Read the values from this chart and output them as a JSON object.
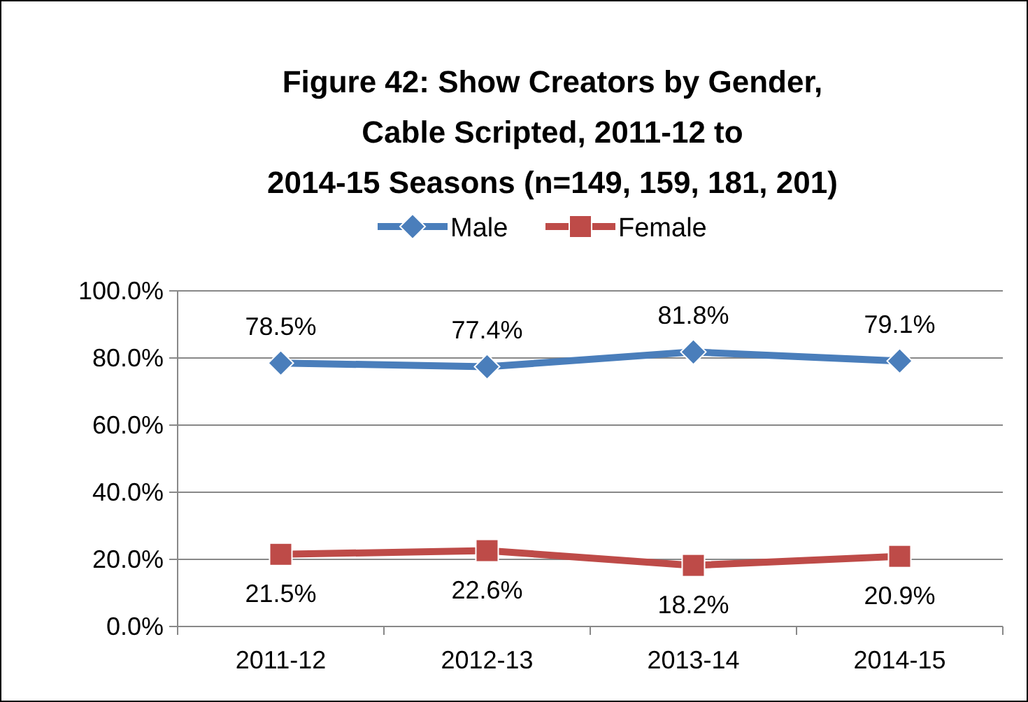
{
  "chart_data": {
    "type": "line",
    "title": "Figure 42:  Show Creators by Gender,\nCable Scripted, 2011-12 to\n2014-15 Seasons (n=149, 159, 181, 201)",
    "categories": [
      "2011-12",
      "2012-13",
      "2013-14",
      "2014-15"
    ],
    "series": [
      {
        "name": "Male",
        "color": "#4a7ebb",
        "values": [
          78.5,
          77.4,
          81.8,
          79.1
        ],
        "marker": "diamond",
        "value_labels": [
          "78.5%",
          "77.4%",
          "81.8%",
          "79.1%"
        ]
      },
      {
        "name": "Female",
        "color": "#be4b48",
        "values": [
          21.5,
          22.6,
          18.2,
          20.9
        ],
        "marker": "square",
        "value_labels": [
          "21.5%",
          "22.6%",
          "18.2%",
          "20.9%"
        ]
      }
    ],
    "ylim": [
      0,
      100
    ],
    "yticks": [
      {
        "value": 0,
        "label": "0.0%"
      },
      {
        "value": 20,
        "label": "20.0%"
      },
      {
        "value": 40,
        "label": "40.0%"
      },
      {
        "value": 60,
        "label": "60.0%"
      },
      {
        "value": 80,
        "label": "80.0%"
      },
      {
        "value": 100,
        "label": "100.0%"
      }
    ],
    "grid": "y",
    "legend": "top",
    "line_style": "solid"
  }
}
